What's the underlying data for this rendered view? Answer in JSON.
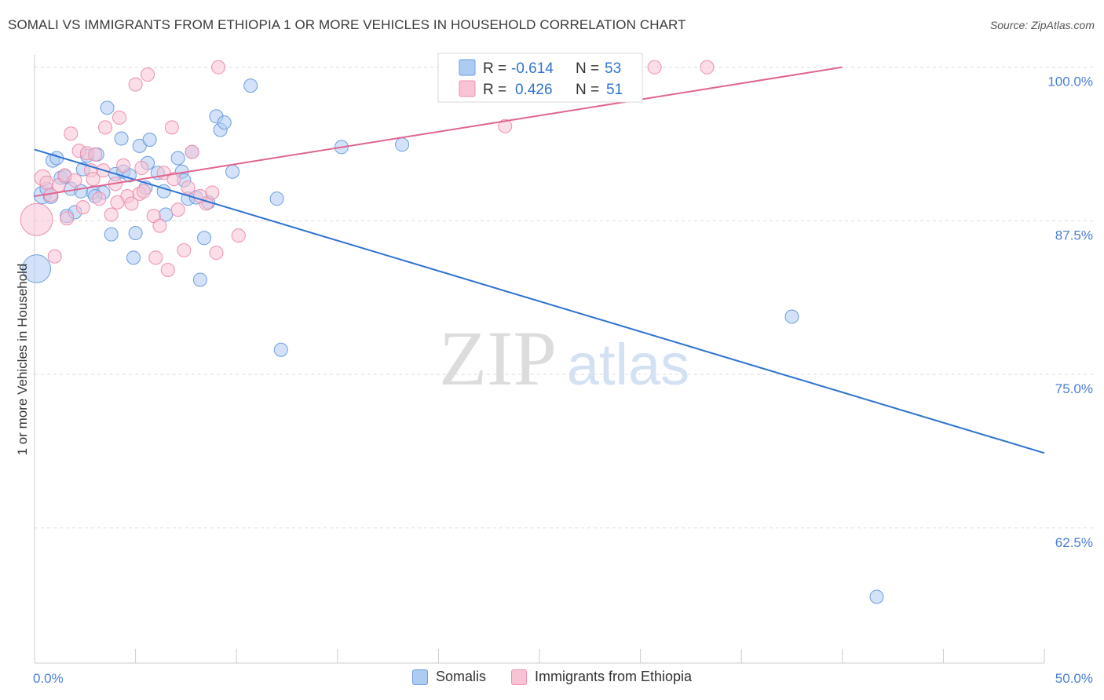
{
  "title": "SOMALI VS IMMIGRANTS FROM ETHIOPIA 1 OR MORE VEHICLES IN HOUSEHOLD CORRELATION CHART",
  "source": "Source: ZipAtlas.com",
  "watermark": {
    "zip": "ZIP",
    "atlas": "atlas"
  },
  "colors": {
    "blue_fill": "#aecbf2",
    "blue_stroke": "#6d9ee0",
    "blue_line": "#2f73d0",
    "pink_fill": "#f8c3d4",
    "pink_stroke": "#ee8fae",
    "pink_line": "#e0648e",
    "axis_text": "#4a7fd4",
    "grid": "#dddddd"
  },
  "legend": {
    "rows": [
      {
        "r_label": "R =",
        "r_value": "-0.614",
        "n_label": "N =",
        "n_value": "53",
        "series": "blue"
      },
      {
        "r_label": "R =",
        "r_value": "0.426",
        "n_label": "N =",
        "n_value": "51",
        "series": "pink"
      }
    ]
  },
  "bottom_legend": [
    {
      "label": "Somalis",
      "series": "blue"
    },
    {
      "label": "Immigrants from Ethiopia",
      "series": "pink"
    }
  ],
  "chart_data": {
    "type": "scatter",
    "title": "SOMALI VS IMMIGRANTS FROM ETHIOPIA 1 OR MORE VEHICLES IN HOUSEHOLD CORRELATION CHART",
    "xlabel": "",
    "ylabel": "1 or more Vehicles in Household",
    "xlim": [
      0,
      50
    ],
    "ylim": [
      51.5,
      101
    ],
    "x_tick_labels": [
      {
        "value": 0,
        "label": "0.0%"
      },
      {
        "value": 50,
        "label": "50.0%"
      }
    ],
    "x_minor_ticks": [
      5,
      10,
      15,
      20,
      25,
      30,
      35,
      40,
      45,
      50
    ],
    "y_ticks": [
      {
        "value": 100,
        "label": "100.0%"
      },
      {
        "value": 87.5,
        "label": "87.5%"
      },
      {
        "value": 75,
        "label": "75.0%"
      },
      {
        "value": 62.5,
        "label": "62.5%"
      }
    ],
    "series": [
      {
        "name": "Somalis",
        "color": "blue",
        "trend": {
          "x": [
            0,
            50
          ],
          "y": [
            93.3,
            68.6
          ]
        },
        "points": [
          {
            "x": 0.1,
            "y": 83.6,
            "s": 2.1
          },
          {
            "x": 0.4,
            "y": 89.6,
            "s": 1.3
          },
          {
            "x": 0.6,
            "y": 90.1,
            "s": 1
          },
          {
            "x": 0.8,
            "y": 89.5,
            "s": 1.1
          },
          {
            "x": 0.9,
            "y": 92.4,
            "s": 1
          },
          {
            "x": 1.1,
            "y": 92.6,
            "s": 1
          },
          {
            "x": 1.3,
            "y": 91.0,
            "s": 1
          },
          {
            "x": 1.5,
            "y": 91.1,
            "s": 1
          },
          {
            "x": 1.6,
            "y": 87.9,
            "s": 1
          },
          {
            "x": 1.8,
            "y": 90.1,
            "s": 1
          },
          {
            "x": 2.0,
            "y": 88.2,
            "s": 1
          },
          {
            "x": 2.3,
            "y": 89.9,
            "s": 1
          },
          {
            "x": 2.4,
            "y": 91.7,
            "s": 1
          },
          {
            "x": 2.6,
            "y": 92.8,
            "s": 1
          },
          {
            "x": 2.9,
            "y": 89.8,
            "s": 1
          },
          {
            "x": 3.1,
            "y": 92.9,
            "s": 1
          },
          {
            "x": 3.4,
            "y": 89.8,
            "s": 1
          },
          {
            "x": 3.6,
            "y": 96.7,
            "s": 1
          },
          {
            "x": 3.8,
            "y": 86.4,
            "s": 1
          },
          {
            "x": 4.0,
            "y": 91.3,
            "s": 1
          },
          {
            "x": 4.3,
            "y": 94.2,
            "s": 1
          },
          {
            "x": 4.4,
            "y": 91.5,
            "s": 1
          },
          {
            "x": 4.7,
            "y": 91.2,
            "s": 1
          },
          {
            "x": 4.9,
            "y": 84.5,
            "s": 1
          },
          {
            "x": 5.0,
            "y": 86.5,
            "s": 1
          },
          {
            "x": 5.2,
            "y": 93.6,
            "s": 1
          },
          {
            "x": 5.5,
            "y": 90.2,
            "s": 1
          },
          {
            "x": 5.6,
            "y": 92.2,
            "s": 1
          },
          {
            "x": 5.7,
            "y": 94.1,
            "s": 1
          },
          {
            "x": 6.1,
            "y": 91.4,
            "s": 1
          },
          {
            "x": 6.4,
            "y": 89.9,
            "s": 1
          },
          {
            "x": 7.1,
            "y": 92.6,
            "s": 1
          },
          {
            "x": 7.3,
            "y": 91.5,
            "s": 1
          },
          {
            "x": 7.4,
            "y": 90.8,
            "s": 1
          },
          {
            "x": 7.6,
            "y": 89.3,
            "s": 1
          },
          {
            "x": 7.8,
            "y": 93.1,
            "s": 1
          },
          {
            "x": 8.0,
            "y": 89.4,
            "s": 1
          },
          {
            "x": 8.2,
            "y": 82.7,
            "s": 1
          },
          {
            "x": 8.4,
            "y": 86.1,
            "s": 1
          },
          {
            "x": 8.6,
            "y": 89.0,
            "s": 1
          },
          {
            "x": 9.0,
            "y": 96.0,
            "s": 1
          },
          {
            "x": 9.2,
            "y": 94.9,
            "s": 1
          },
          {
            "x": 9.4,
            "y": 95.5,
            "s": 1
          },
          {
            "x": 9.8,
            "y": 91.5,
            "s": 1
          },
          {
            "x": 10.7,
            "y": 98.5,
            "s": 1
          },
          {
            "x": 12.0,
            "y": 89.3,
            "s": 1
          },
          {
            "x": 12.2,
            "y": 77.0,
            "s": 1
          },
          {
            "x": 15.2,
            "y": 93.5,
            "s": 1
          },
          {
            "x": 18.2,
            "y": 93.7,
            "s": 1
          },
          {
            "x": 37.5,
            "y": 79.7,
            "s": 1
          },
          {
            "x": 41.7,
            "y": 56.9,
            "s": 1
          },
          {
            "x": 3.0,
            "y": 89.5,
            "s": 1
          },
          {
            "x": 6.5,
            "y": 88.0,
            "s": 1
          }
        ]
      },
      {
        "name": "Immigrants from Ethiopia",
        "color": "pink",
        "trend": {
          "x": [
            0,
            40
          ],
          "y": 89.5,
          "y_end": 100.0
        },
        "points": [
          {
            "x": 0.1,
            "y": 87.6,
            "s": 2.4
          },
          {
            "x": 0.4,
            "y": 91.0,
            "s": 1.2
          },
          {
            "x": 0.6,
            "y": 90.6,
            "s": 1
          },
          {
            "x": 0.8,
            "y": 89.6,
            "s": 1
          },
          {
            "x": 1.0,
            "y": 84.6,
            "s": 1
          },
          {
            "x": 1.2,
            "y": 90.4,
            "s": 1
          },
          {
            "x": 1.5,
            "y": 91.2,
            "s": 1
          },
          {
            "x": 1.6,
            "y": 87.7,
            "s": 1
          },
          {
            "x": 1.8,
            "y": 94.6,
            "s": 1
          },
          {
            "x": 2.0,
            "y": 90.8,
            "s": 1
          },
          {
            "x": 2.2,
            "y": 93.2,
            "s": 1
          },
          {
            "x": 2.4,
            "y": 88.6,
            "s": 1
          },
          {
            "x": 2.6,
            "y": 93.0,
            "s": 1
          },
          {
            "x": 2.8,
            "y": 91.6,
            "s": 1
          },
          {
            "x": 3.0,
            "y": 92.9,
            "s": 1
          },
          {
            "x": 3.2,
            "y": 89.3,
            "s": 1
          },
          {
            "x": 3.4,
            "y": 91.6,
            "s": 1
          },
          {
            "x": 3.5,
            "y": 95.1,
            "s": 1
          },
          {
            "x": 3.8,
            "y": 88.0,
            "s": 1
          },
          {
            "x": 4.0,
            "y": 90.5,
            "s": 1
          },
          {
            "x": 4.2,
            "y": 95.9,
            "s": 1
          },
          {
            "x": 4.4,
            "y": 92.0,
            "s": 1
          },
          {
            "x": 4.6,
            "y": 89.5,
            "s": 1
          },
          {
            "x": 4.8,
            "y": 88.9,
            "s": 1
          },
          {
            "x": 5.0,
            "y": 98.6,
            "s": 1
          },
          {
            "x": 5.2,
            "y": 89.7,
            "s": 1
          },
          {
            "x": 5.4,
            "y": 89.9,
            "s": 1
          },
          {
            "x": 5.6,
            "y": 99.4,
            "s": 1
          },
          {
            "x": 5.9,
            "y": 87.9,
            "s": 1
          },
          {
            "x": 6.0,
            "y": 84.5,
            "s": 1
          },
          {
            "x": 6.2,
            "y": 87.1,
            "s": 1
          },
          {
            "x": 6.4,
            "y": 91.4,
            "s": 1
          },
          {
            "x": 6.6,
            "y": 83.5,
            "s": 1
          },
          {
            "x": 6.8,
            "y": 95.1,
            "s": 1
          },
          {
            "x": 7.1,
            "y": 88.4,
            "s": 1
          },
          {
            "x": 7.4,
            "y": 85.1,
            "s": 1
          },
          {
            "x": 7.6,
            "y": 90.2,
            "s": 1
          },
          {
            "x": 7.8,
            "y": 93.1,
            "s": 1
          },
          {
            "x": 8.5,
            "y": 88.9,
            "s": 1
          },
          {
            "x": 8.8,
            "y": 89.8,
            "s": 1
          },
          {
            "x": 9.0,
            "y": 84.9,
            "s": 1
          },
          {
            "x": 9.1,
            "y": 100.0,
            "s": 1
          },
          {
            "x": 10.1,
            "y": 86.3,
            "s": 1
          },
          {
            "x": 23.3,
            "y": 95.2,
            "s": 1
          },
          {
            "x": 30.7,
            "y": 100.0,
            "s": 1
          },
          {
            "x": 33.3,
            "y": 100.0,
            "s": 1
          },
          {
            "x": 2.9,
            "y": 90.9,
            "s": 1
          },
          {
            "x": 4.1,
            "y": 89.0,
            "s": 1
          },
          {
            "x": 5.3,
            "y": 91.8,
            "s": 1
          },
          {
            "x": 6.9,
            "y": 90.9,
            "s": 1
          },
          {
            "x": 8.2,
            "y": 89.5,
            "s": 1
          }
        ]
      }
    ]
  }
}
